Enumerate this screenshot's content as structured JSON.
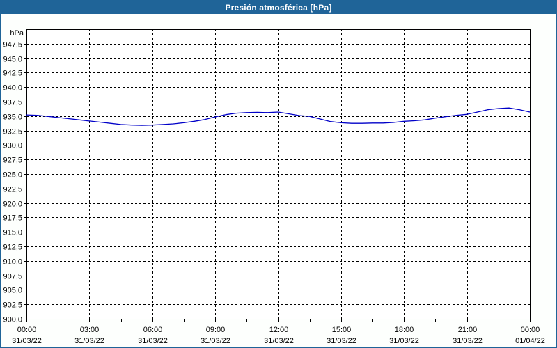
{
  "window": {
    "title": "Presión atmosférica [hPa]"
  },
  "colors": {
    "titlebar": "#1f6498",
    "frame": "#1f6498",
    "title_text": "#ffffff",
    "background": "#fdfffd",
    "plot_background": "#ffffff",
    "axis": "#000000",
    "grid": "#000000",
    "text": "#000000",
    "line": "#0000c8"
  },
  "chart_data": {
    "type": "line",
    "title": "Presión atmosférica [hPa]",
    "unit_label": "hPa",
    "ylabel": "hPa",
    "xlabel": "",
    "ylim": [
      900,
      950
    ],
    "ytick_step": 2.5,
    "ytick_labels": [
      "947,5",
      "945,0",
      "942,5",
      "940,0",
      "937,5",
      "935,0",
      "932,5",
      "930,0",
      "927,5",
      "925,0",
      "922,5",
      "920,0",
      "917,5",
      "915,0",
      "912,5",
      "910,0",
      "907,5",
      "905,0",
      "902,5",
      "900,0"
    ],
    "grid": "dashed",
    "legend": "none",
    "x_minor_step_hours": 1.5,
    "xticks": [
      {
        "hour": 0,
        "time": "00:00",
        "date": "31/03/22"
      },
      {
        "hour": 3,
        "time": "03:00",
        "date": "31/03/22"
      },
      {
        "hour": 6,
        "time": "06:00",
        "date": "31/03/22"
      },
      {
        "hour": 9,
        "time": "09:00",
        "date": "31/03/22"
      },
      {
        "hour": 12,
        "time": "12:00",
        "date": "31/03/22"
      },
      {
        "hour": 15,
        "time": "15:00",
        "date": "31/03/22"
      },
      {
        "hour": 18,
        "time": "18:00",
        "date": "31/03/22"
      },
      {
        "hour": 21,
        "time": "21:00",
        "date": "31/03/22"
      },
      {
        "hour": 24,
        "time": "00:00",
        "date": "01/04/22"
      }
    ],
    "series": [
      {
        "name": "Presión atmosférica",
        "color": "#0000c8",
        "x_hours": [
          0,
          0.5,
          1,
          1.5,
          2,
          2.5,
          3,
          3.5,
          4,
          4.5,
          5,
          5.5,
          6,
          6.5,
          7,
          7.5,
          8,
          8.5,
          9,
          9.5,
          10,
          10.5,
          11,
          11.5,
          12,
          12.5,
          13,
          13.5,
          14,
          14.5,
          15,
          15.5,
          16,
          16.5,
          17,
          17.5,
          18,
          18.5,
          19,
          19.5,
          20,
          20.5,
          21,
          21.5,
          22,
          22.5,
          23,
          23.5,
          24
        ],
        "values": [
          935.2,
          935.15,
          934.95,
          934.75,
          934.55,
          934.35,
          934.15,
          933.95,
          933.75,
          933.55,
          933.45,
          933.4,
          933.45,
          933.55,
          933.65,
          933.85,
          934.1,
          934.4,
          934.85,
          935.25,
          935.5,
          935.6,
          935.65,
          935.6,
          935.7,
          935.4,
          935.1,
          934.95,
          934.5,
          934.05,
          933.85,
          933.75,
          933.75,
          933.8,
          933.8,
          933.9,
          934.1,
          934.2,
          934.35,
          934.65,
          934.9,
          935.15,
          935.3,
          935.7,
          936.1,
          936.3,
          936.4,
          936.1,
          935.7
        ]
      }
    ]
  }
}
